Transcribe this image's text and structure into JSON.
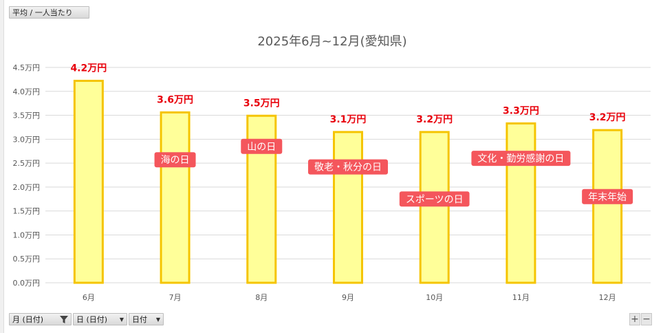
{
  "pivot": {
    "value_field": "平均 / 一人当たり",
    "axis_fields": [
      {
        "label": "月 (日付)",
        "filtered": true
      },
      {
        "label": "日 (日付)",
        "filtered": false
      },
      {
        "label": "日付",
        "filtered": false
      }
    ],
    "zoom_in": "+",
    "zoom_out": "−"
  },
  "chart_data": {
    "type": "bar",
    "title": "2025年6月~12月(愛知県)",
    "categories": [
      "6月",
      "7月",
      "8月",
      "9月",
      "10月",
      "11月",
      "12月"
    ],
    "values": [
      4.22,
      3.56,
      3.49,
      3.15,
      3.15,
      3.33,
      3.19
    ],
    "data_labels": [
      "4.2万円",
      "3.6万円",
      "3.5万円",
      "3.1万円",
      "3.2万円",
      "3.3万円",
      "3.2万円"
    ],
    "yticks": [
      "0.0万円",
      "0.5万円",
      "1.0万円",
      "1.5万円",
      "2.0万円",
      "2.5万円",
      "3.0万円",
      "3.5万円",
      "4.0万円",
      "4.5万円"
    ],
    "ylim": [
      0,
      4.5
    ],
    "grid": true,
    "annotations": [
      {
        "month": "7月",
        "text": "海の日",
        "value": 2.57
      },
      {
        "month": "8月",
        "text": "山の日",
        "value": 2.85
      },
      {
        "month": "9月",
        "text": "敬老・秋分の日",
        "value": 2.42
      },
      {
        "month": "10月",
        "text": "スポーツの日",
        "value": 1.75
      },
      {
        "month": "11月",
        "text": "文化・勤労感謝の日",
        "value": 2.6
      },
      {
        "month": "12月",
        "text": "年末年始",
        "value": 1.8
      }
    ],
    "colors": {
      "bar_fill": "#ffff99",
      "bar_stroke": "#f5c400",
      "label": "#e8000b",
      "annotation_bg": "#f4565c",
      "annotation_text": "#ffffff",
      "grid": "#d9d9d9",
      "axis_text": "#555555",
      "title": "#595959"
    }
  }
}
